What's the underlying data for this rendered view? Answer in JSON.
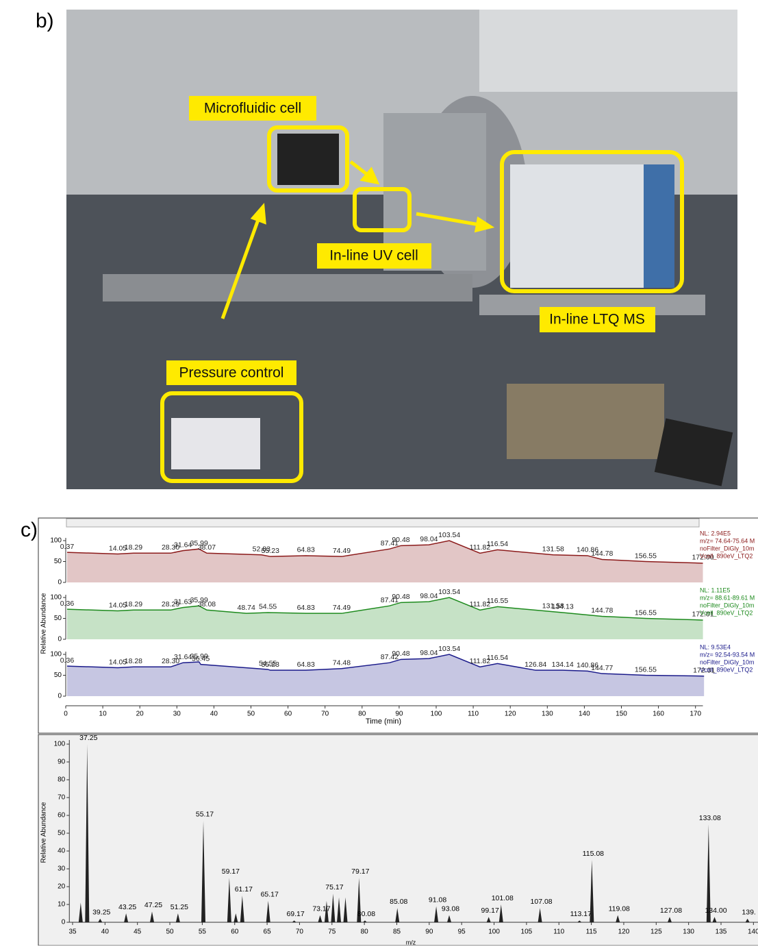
{
  "panel_b": {
    "label": "b)",
    "callouts": [
      "Microfluidic cell",
      "In-line UV cell",
      "In-line LTQ MS",
      "Pressure control"
    ]
  },
  "panel_c": {
    "label": "c)"
  },
  "chart_data": [
    {
      "type": "line",
      "xlabel": "Time (min)",
      "ylabel": "Relative Abundance",
      "xlim": [
        0,
        172
      ],
      "xticks": [
        0,
        10,
        20,
        30,
        40,
        50,
        60,
        70,
        80,
        90,
        100,
        110,
        120,
        130,
        140,
        150,
        160,
        170
      ],
      "ylim": [
        0,
        100
      ],
      "yticks": [
        0,
        50,
        100
      ],
      "series": [
        {
          "color": "#8b1a1a",
          "info": [
            "NL: 2.94E5",
            "m/z= 74.64-75.64 M",
            "noFilter_DiGly_10m",
            "Vcell_890eV_LTQ2"
          ],
          "x": [
            0.37,
            14.05,
            18.29,
            28.3,
            31.64,
            35.99,
            38.07,
            52.83,
            55.23,
            64.83,
            74.49,
            87.41,
            90.48,
            98.04,
            103.54,
            111.82,
            116.54,
            131.58,
            140.86,
            144.78,
            156.55,
            172.0
          ],
          "peak_labels": [
            "0.37",
            "14.05",
            "18.29",
            "28.30",
            "31.64",
            "35.99",
            "38.07",
            "52.83",
            "55.23",
            "64.83",
            "74.49",
            "87.41",
            "90.48",
            "98.04",
            "103.54",
            "111.82",
            "116.54",
            "131.58",
            "140.86",
            "144.78",
            "156.55",
            "172.00"
          ],
          "values": [
            72,
            68,
            70,
            70,
            76,
            80,
            70,
            66,
            62,
            64,
            62,
            80,
            88,
            90,
            100,
            70,
            78,
            66,
            64,
            55,
            50,
            46
          ]
        },
        {
          "color": "#1d8a1d",
          "info": [
            "NL: 1.11E5",
            "m/z= 88.61-89.61 M",
            "noFilter_DiGly_10m",
            "Vcell_890eV_LTQ2"
          ],
          "x": [
            0.36,
            14.05,
            18.29,
            28.29,
            31.63,
            35.99,
            38.08,
            48.74,
            54.55,
            64.83,
            74.49,
            87.41,
            90.48,
            98.04,
            103.54,
            111.82,
            116.55,
            131.58,
            134.13,
            144.78,
            156.55,
            172.01
          ],
          "peak_labels": [
            "0.36",
            "14.05",
            "18.29",
            "28.29",
            "31.63",
            "35.99",
            "38.08",
            "48.74",
            "54.55",
            "64.83",
            "74.49",
            "87.41",
            "90.48",
            "98.04",
            "103.54",
            "111.82",
            "116.55",
            "131.58",
            "134.13",
            "144.78",
            "156.55",
            "172.01"
          ],
          "values": [
            72,
            68,
            70,
            70,
            76,
            80,
            70,
            62,
            64,
            62,
            62,
            80,
            88,
            90,
            100,
            70,
            78,
            66,
            64,
            55,
            50,
            46
          ]
        },
        {
          "color": "#1a1a8a",
          "info": [
            "NL: 9.53E4",
            "m/z= 92.54-93.54 M",
            "noFilter_DiGly_10m",
            "Vcell_890eV_LTQ2"
          ],
          "x": [
            0.36,
            14.05,
            18.28,
            28.3,
            31.64,
            35.99,
            36.45,
            54.55,
            55.23,
            64.83,
            74.48,
            87.42,
            90.48,
            98.04,
            103.54,
            111.82,
            116.54,
            126.84,
            134.14,
            140.86,
            144.77,
            156.55,
            172.31
          ],
          "peak_labels": [
            "0.36",
            "14.05",
            "18.28",
            "28.30",
            "31.64",
            "35.99",
            "36.45",
            "54.55",
            "55.23",
            "64.83",
            "74.48",
            "87.42",
            "90.48",
            "98.04",
            "103.54",
            "111.82",
            "116.54",
            "126.84",
            "134.14",
            "140.86",
            "144.77",
            "156.55",
            "172.31"
          ],
          "values": [
            72,
            68,
            70,
            70,
            80,
            82,
            76,
            64,
            62,
            62,
            66,
            80,
            88,
            90,
            100,
            70,
            78,
            62,
            62,
            60,
            54,
            50,
            48
          ]
        }
      ]
    },
    {
      "type": "bar",
      "ylabel": "Relative Abundance",
      "xlabel": "m/z",
      "xlim": [
        34.5,
        140
      ],
      "xticks": [
        35,
        40,
        45,
        50,
        55,
        60,
        65,
        70,
        75,
        80,
        85,
        90,
        95,
        100,
        105,
        110,
        115,
        120,
        125,
        130,
        135,
        140
      ],
      "ylim": [
        0,
        100
      ],
      "yticks": [
        0,
        10,
        20,
        30,
        40,
        50,
        60,
        70,
        80,
        90,
        100
      ],
      "color": "#222222",
      "x": [
        36.25,
        37.25,
        39.25,
        43.25,
        47.25,
        51.25,
        55.17,
        59.17,
        60.17,
        61.17,
        65.17,
        69.17,
        73.17,
        74.17,
        75.17,
        76.08,
        77.08,
        79.17,
        80.08,
        85.08,
        91.08,
        93.08,
        99.17,
        101.08,
        107.08,
        113.17,
        115.08,
        119.08,
        127.08,
        133.08,
        134.0,
        139.08
      ],
      "peak_labels": [
        null,
        "37.25",
        "39.25",
        "43.25",
        "47.25",
        "51.25",
        "55.17",
        "59.17",
        null,
        "61.17",
        "65.17",
        "69.17",
        "73.17",
        null,
        "75.17",
        null,
        null,
        "79.17",
        "80.08",
        "85.08",
        "91.08",
        "93.08",
        "99.17",
        "101.08",
        "107.08",
        "113.17",
        "115.08",
        "119.08",
        "127.08",
        "133.08",
        "134.00",
        "139."
      ],
      "values": [
        11,
        100,
        2,
        5,
        6,
        5,
        57,
        25,
        5,
        15,
        12,
        1,
        4,
        12,
        16,
        14,
        14,
        25,
        1,
        8,
        9,
        4,
        3,
        10,
        8,
        1,
        35,
        4,
        3,
        55,
        3,
        2
      ]
    }
  ]
}
